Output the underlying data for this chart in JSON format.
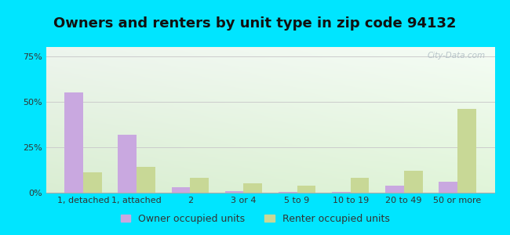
{
  "title": "Owners and renters by unit type in zip code 94132",
  "categories": [
    "1, detached",
    "1, attached",
    "2",
    "3 or 4",
    "5 to 9",
    "10 to 19",
    "20 to 49",
    "50 or more"
  ],
  "owner_values": [
    55,
    32,
    3,
    1,
    0.5,
    0.5,
    4,
    6
  ],
  "renter_values": [
    11,
    14,
    8,
    5,
    4,
    8,
    12,
    46
  ],
  "owner_color": "#c9a8e0",
  "renter_color": "#c8d896",
  "background_outer": "#00e5ff",
  "ylim": [
    0,
    80
  ],
  "ylabel_ticks": [
    "0%",
    "25%",
    "50%",
    "75%"
  ],
  "ytick_values": [
    0,
    25,
    50,
    75
  ],
  "legend_owner": "Owner occupied units",
  "legend_renter": "Renter occupied units",
  "watermark": "City-Data.com",
  "title_fontsize": 13,
  "tick_fontsize": 8,
  "legend_fontsize": 9,
  "bar_width": 0.35
}
